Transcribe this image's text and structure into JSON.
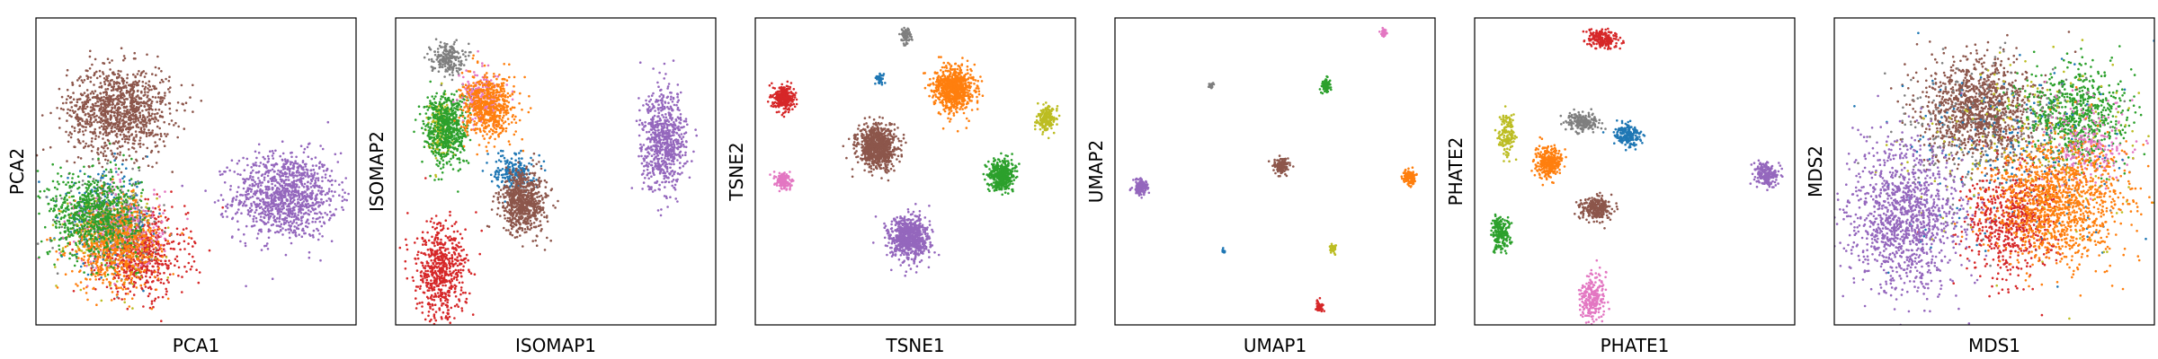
{
  "palette": {
    "blue": "#1f77b4",
    "orange": "#ff7f0e",
    "green": "#2ca02c",
    "red": "#d62728",
    "purple": "#9467bd",
    "brown": "#8c564b",
    "pink": "#e377c2",
    "gray": "#7f7f7f",
    "olive": "#bcbd22"
  },
  "chart_data": [
    {
      "type": "scatter",
      "xlabel": "PCA1",
      "ylabel": "PCA2",
      "grid": false,
      "xlim": [
        0,
        1
      ],
      "ylim": [
        0,
        1
      ],
      "clusters": [
        {
          "color": "purple",
          "x": 0.78,
          "y": 0.42,
          "sx": 0.08,
          "sy": 0.07,
          "n": 1100
        },
        {
          "color": "brown",
          "x": 0.26,
          "y": 0.7,
          "sx": 0.08,
          "sy": 0.07,
          "n": 1100
        },
        {
          "color": "red",
          "x": 0.33,
          "y": 0.23,
          "sx": 0.07,
          "sy": 0.07,
          "n": 600
        },
        {
          "color": "blue",
          "x": 0.22,
          "y": 0.35,
          "sx": 0.07,
          "sy": 0.07,
          "n": 250
        },
        {
          "color": "gray",
          "x": 0.24,
          "y": 0.33,
          "sx": 0.07,
          "sy": 0.07,
          "n": 250
        },
        {
          "color": "olive",
          "x": 0.23,
          "y": 0.3,
          "sx": 0.07,
          "sy": 0.07,
          "n": 250
        },
        {
          "color": "pink",
          "x": 0.26,
          "y": 0.32,
          "sx": 0.07,
          "sy": 0.07,
          "n": 250
        },
        {
          "color": "orange",
          "x": 0.25,
          "y": 0.26,
          "sx": 0.07,
          "sy": 0.07,
          "n": 600
        },
        {
          "color": "green",
          "x": 0.18,
          "y": 0.36,
          "sx": 0.07,
          "sy": 0.07,
          "n": 700
        }
      ]
    },
    {
      "type": "scatter",
      "xlabel": "ISOMAP1",
      "ylabel": "ISOMAP2",
      "grid": false,
      "xlim": [
        0,
        1
      ],
      "ylim": [
        0,
        1
      ],
      "clusters": [
        {
          "color": "gray",
          "x": 0.16,
          "y": 0.87,
          "sx": 0.025,
          "sy": 0.025,
          "n": 200
        },
        {
          "color": "olive",
          "x": 0.14,
          "y": 0.64,
          "sx": 0.02,
          "sy": 0.05,
          "n": 150
        },
        {
          "color": "green",
          "x": 0.16,
          "y": 0.64,
          "sx": 0.035,
          "sy": 0.06,
          "n": 600
        },
        {
          "color": "pink",
          "x": 0.27,
          "y": 0.74,
          "sx": 0.03,
          "sy": 0.04,
          "n": 200
        },
        {
          "color": "orange",
          "x": 0.29,
          "y": 0.71,
          "sx": 0.04,
          "sy": 0.05,
          "n": 600
        },
        {
          "color": "blue",
          "x": 0.37,
          "y": 0.5,
          "sx": 0.03,
          "sy": 0.03,
          "n": 200
        },
        {
          "color": "brown",
          "x": 0.4,
          "y": 0.4,
          "sx": 0.035,
          "sy": 0.05,
          "n": 700
        },
        {
          "color": "red",
          "x": 0.14,
          "y": 0.17,
          "sx": 0.04,
          "sy": 0.08,
          "n": 600
        },
        {
          "color": "purple",
          "x": 0.84,
          "y": 0.6,
          "sx": 0.035,
          "sy": 0.08,
          "n": 700
        }
      ]
    },
    {
      "type": "scatter",
      "xlabel": "TSNE1",
      "ylabel": "TSNE2",
      "grid": false,
      "xlim": [
        0,
        1
      ],
      "ylim": [
        0,
        1
      ],
      "clusters": [
        {
          "color": "gray",
          "x": 0.47,
          "y": 0.94,
          "sx": 0.008,
          "sy": 0.012,
          "n": 80
        },
        {
          "color": "red",
          "x": 0.09,
          "y": 0.74,
          "sx": 0.016,
          "sy": 0.02,
          "n": 300
        },
        {
          "color": "blue",
          "x": 0.39,
          "y": 0.8,
          "sx": 0.006,
          "sy": 0.008,
          "n": 40
        },
        {
          "color": "orange",
          "x": 0.62,
          "y": 0.77,
          "sx": 0.03,
          "sy": 0.035,
          "n": 800
        },
        {
          "color": "olive",
          "x": 0.91,
          "y": 0.67,
          "sx": 0.014,
          "sy": 0.018,
          "n": 200
        },
        {
          "color": "brown",
          "x": 0.38,
          "y": 0.58,
          "sx": 0.03,
          "sy": 0.035,
          "n": 800
        },
        {
          "color": "green",
          "x": 0.77,
          "y": 0.49,
          "sx": 0.02,
          "sy": 0.025,
          "n": 400
        },
        {
          "color": "pink",
          "x": 0.09,
          "y": 0.47,
          "sx": 0.012,
          "sy": 0.014,
          "n": 150
        },
        {
          "color": "purple",
          "x": 0.48,
          "y": 0.28,
          "sx": 0.03,
          "sy": 0.035,
          "n": 800
        }
      ]
    },
    {
      "type": "scatter",
      "xlabel": "UMAP1",
      "ylabel": "UMAP2",
      "grid": false,
      "xlim": [
        0,
        1
      ],
      "ylim": [
        0,
        1
      ],
      "clusters": [
        {
          "color": "pink",
          "x": 0.84,
          "y": 0.95,
          "sx": 0.005,
          "sy": 0.006,
          "n": 40
        },
        {
          "color": "gray",
          "x": 0.3,
          "y": 0.78,
          "sx": 0.004,
          "sy": 0.005,
          "n": 25
        },
        {
          "color": "green",
          "x": 0.66,
          "y": 0.78,
          "sx": 0.008,
          "sy": 0.01,
          "n": 90
        },
        {
          "color": "brown",
          "x": 0.52,
          "y": 0.52,
          "sx": 0.011,
          "sy": 0.013,
          "n": 140
        },
        {
          "color": "orange",
          "x": 0.92,
          "y": 0.48,
          "sx": 0.01,
          "sy": 0.013,
          "n": 130
        },
        {
          "color": "purple",
          "x": 0.08,
          "y": 0.45,
          "sx": 0.011,
          "sy": 0.013,
          "n": 150
        },
        {
          "color": "blue",
          "x": 0.34,
          "y": 0.24,
          "sx": 0.003,
          "sy": 0.004,
          "n": 15
        },
        {
          "color": "olive",
          "x": 0.68,
          "y": 0.25,
          "sx": 0.006,
          "sy": 0.007,
          "n": 35
        },
        {
          "color": "red",
          "x": 0.64,
          "y": 0.06,
          "sx": 0.006,
          "sy": 0.008,
          "n": 45
        }
      ]
    },
    {
      "type": "scatter",
      "xlabel": "PHATE1",
      "ylabel": "PHATE2",
      "grid": false,
      "xlim": [
        0,
        1
      ],
      "ylim": [
        0,
        1
      ],
      "clusters": [
        {
          "color": "red",
          "x": 0.4,
          "y": 0.93,
          "sx": 0.025,
          "sy": 0.015,
          "n": 200
        },
        {
          "color": "gray",
          "x": 0.34,
          "y": 0.66,
          "sx": 0.025,
          "sy": 0.015,
          "n": 200
        },
        {
          "color": "blue",
          "x": 0.48,
          "y": 0.62,
          "sx": 0.022,
          "sy": 0.018,
          "n": 200
        },
        {
          "color": "olive",
          "x": 0.1,
          "y": 0.62,
          "sx": 0.012,
          "sy": 0.03,
          "n": 150
        },
        {
          "color": "orange",
          "x": 0.23,
          "y": 0.53,
          "sx": 0.02,
          "sy": 0.025,
          "n": 300
        },
        {
          "color": "purple",
          "x": 0.91,
          "y": 0.49,
          "sx": 0.018,
          "sy": 0.02,
          "n": 200
        },
        {
          "color": "brown",
          "x": 0.38,
          "y": 0.38,
          "sx": 0.025,
          "sy": 0.018,
          "n": 250
        },
        {
          "color": "green",
          "x": 0.08,
          "y": 0.3,
          "sx": 0.015,
          "sy": 0.03,
          "n": 200
        },
        {
          "color": "pink",
          "x": 0.37,
          "y": 0.09,
          "sx": 0.02,
          "sy": 0.04,
          "n": 250
        }
      ]
    },
    {
      "type": "scatter",
      "xlabel": "MDS1",
      "ylabel": "MDS2",
      "grid": false,
      "xlim": [
        0,
        1
      ],
      "ylim": [
        0,
        1
      ],
      "clusters": [
        {
          "color": "brown",
          "x": 0.45,
          "y": 0.7,
          "sx": 0.09,
          "sy": 0.08,
          "n": 1200
        },
        {
          "color": "green",
          "x": 0.75,
          "y": 0.68,
          "sx": 0.08,
          "sy": 0.08,
          "n": 700
        },
        {
          "color": "pink",
          "x": 0.78,
          "y": 0.58,
          "sx": 0.07,
          "sy": 0.08,
          "n": 250
        },
        {
          "color": "blue",
          "x": 0.55,
          "y": 0.55,
          "sx": 0.18,
          "sy": 0.15,
          "n": 200
        },
        {
          "color": "gray",
          "x": 0.5,
          "y": 0.6,
          "sx": 0.18,
          "sy": 0.15,
          "n": 200
        },
        {
          "color": "olive",
          "x": 0.6,
          "y": 0.55,
          "sx": 0.18,
          "sy": 0.15,
          "n": 200
        },
        {
          "color": "red",
          "x": 0.55,
          "y": 0.33,
          "sx": 0.07,
          "sy": 0.09,
          "n": 600
        },
        {
          "color": "orange",
          "x": 0.7,
          "y": 0.4,
          "sx": 0.1,
          "sy": 0.1,
          "n": 1200
        },
        {
          "color": "purple",
          "x": 0.22,
          "y": 0.35,
          "sx": 0.09,
          "sy": 0.12,
          "n": 1200
        }
      ]
    }
  ]
}
